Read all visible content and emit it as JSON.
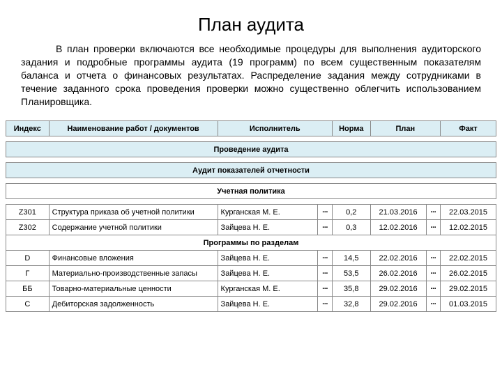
{
  "title": "План аудита",
  "paragraph": "В план проверки включаются все необходимые процедуры для выполнения аудиторского задания и подробные программы аудита (19 программ) по всем существенным показателям баланса и отчета о финансовых результатах. Распределение задания между сотрудниками в течение заданного срока проведения проверки можно существенно облегчить использованием Планировщика.",
  "headers": {
    "index": "Индекс",
    "name": "Наименование работ / документов",
    "executor": "Исполнитель",
    "norm": "Норма",
    "plan": "План",
    "fact": "Факт"
  },
  "sections": {
    "audit": "Проведение аудита",
    "indicators": "Аудит показателей отчетности",
    "policy": "Учетная политика",
    "programs": "Программы по разделам"
  },
  "dots": "···",
  "rows_policy": [
    {
      "idx": "Z301",
      "name": "Структура приказа об учетной политики",
      "exec": "Курганская М. Е.",
      "norm": "0,2",
      "plan": "21.03.2016",
      "fact": "22.03.2015"
    },
    {
      "idx": "Z302",
      "name": "Содержание учетной политики",
      "exec": "Зайцева Н. Е.",
      "norm": "0,3",
      "plan": "12.02.2016",
      "fact": "12.02.2015"
    }
  ],
  "rows_programs": [
    {
      "idx": "D",
      "name": "Финансовые вложения",
      "exec": "Зайцева Н. Е.",
      "norm": "14,5",
      "plan": "22.02.2016",
      "fact": "22.02.2015"
    },
    {
      "idx": "Г",
      "name": "Материально-производственные запасы",
      "exec": "Зайцева Н. Е.",
      "norm": "53,5",
      "plan": "26.02.2016",
      "fact": "26.02.2015"
    },
    {
      "idx": "ББ",
      "name": "Товарно-материальные ценности",
      "exec": "Курганская М. Е.",
      "norm": "35,8",
      "plan": "29.02.2016",
      "fact": "29.02.2015"
    },
    {
      "idx": "С",
      "name": "Дебиторская задолженность",
      "exec": "Зайцева Н. Е.",
      "norm": "32,8",
      "plan": "29.02.2016",
      "fact": "01.03.2015"
    }
  ],
  "colors": {
    "header_bg": "#dbeef4",
    "index_bg": "#b4e2cd",
    "border": "#888888",
    "background": "#ffffff"
  },
  "font_sizes": {
    "title": 26,
    "paragraph": 14,
    "table": 11
  }
}
